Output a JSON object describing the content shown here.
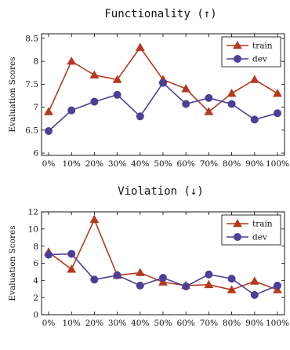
{
  "colors": {
    "train": "#b5391f",
    "dev": "#4d3f96",
    "axis": "#000000",
    "legend_border": "#000000"
  },
  "chart_data": [
    {
      "type": "line",
      "title": "Functionality (↑)",
      "xlabel": "",
      "ylabel": "Evaluation Scores",
      "categories": [
        "0%",
        "10%",
        "20%",
        "30%",
        "40%",
        "50%",
        "60%",
        "70%",
        "80%",
        "90%",
        "100%"
      ],
      "ylim": [
        5.95,
        8.6
      ],
      "yticks": [
        "6",
        "6.5",
        "7",
        "7.5",
        "8",
        "8.5"
      ],
      "ytick_values": [
        6,
        6.5,
        7,
        7.5,
        8,
        8.5
      ],
      "legend_position": "top-right",
      "grid": false,
      "series": [
        {
          "name": "train",
          "marker": "triangle",
          "values": [
            6.9,
            8.0,
            7.7,
            7.6,
            8.3,
            7.6,
            7.4,
            6.9,
            7.3,
            7.6,
            7.3
          ]
        },
        {
          "name": "dev",
          "marker": "circle",
          "values": [
            6.48,
            6.93,
            7.12,
            7.27,
            6.8,
            7.53,
            7.07,
            7.2,
            7.07,
            6.73,
            6.87
          ]
        }
      ]
    },
    {
      "type": "line",
      "title": "Violation (↓)",
      "xlabel": "",
      "ylabel": "Evaluation Scores",
      "categories": [
        "0%",
        "10%",
        "20%",
        "30%",
        "40%",
        "50%",
        "60%",
        "70%",
        "80%",
        "90%",
        "100%"
      ],
      "ylim": [
        0,
        12
      ],
      "yticks": [
        "0",
        "2",
        "4",
        "6",
        "8",
        "10",
        "12"
      ],
      "ytick_values": [
        0,
        2,
        4,
        6,
        8,
        10,
        12
      ],
      "legend_position": "top-right",
      "grid": false,
      "series": [
        {
          "name": "train",
          "marker": "triangle",
          "values": [
            7.3,
            5.3,
            11.1,
            4.6,
            4.9,
            3.8,
            3.4,
            3.5,
            2.9,
            3.9,
            2.9
          ]
        },
        {
          "name": "dev",
          "marker": "circle",
          "values": [
            7.0,
            7.1,
            4.1,
            4.6,
            3.4,
            4.3,
            3.3,
            4.7,
            4.2,
            2.3,
            3.4
          ]
        }
      ]
    }
  ]
}
